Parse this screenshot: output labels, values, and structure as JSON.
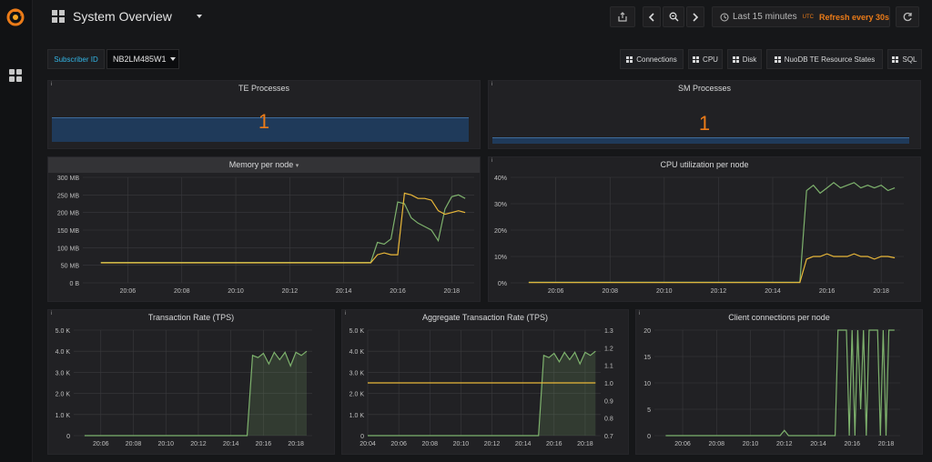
{
  "topbar": {
    "title": "System Overview",
    "time_range": "Last 15 minutes",
    "timezone": "UTC",
    "refresh": "Refresh every 30s"
  },
  "variables": {
    "label": "Subscriber ID",
    "value": "NB2LM485W1"
  },
  "dashboard_links": [
    "Connections",
    "CPU",
    "Disk",
    "NuoDB TE Resource States",
    "SQL"
  ],
  "stats": [
    {
      "title": "TE Processes",
      "value": "1"
    },
    {
      "title": "SM Processes",
      "value": "1"
    }
  ],
  "panels": {
    "memory": {
      "title": "Memory per node"
    },
    "cpu": {
      "title": "CPU utilization per node"
    },
    "tps": {
      "title": "Transaction Rate (TPS)"
    },
    "agg": {
      "title": "Aggregate Transaction Rate (TPS)"
    },
    "clients": {
      "title": "Client connections per node"
    }
  },
  "colors": {
    "green": "#7eb26d",
    "yellow": "#eab839",
    "orange": "#eb7b18",
    "blue": "#33b5e5"
  },
  "chart_data": [
    {
      "id": "memory",
      "type": "line",
      "title": "Memory per node",
      "x": [
        "20:05",
        "20:05:30",
        "20:06",
        "20:06:30",
        "20:07",
        "20:07:30",
        "20:08",
        "20:08:30",
        "20:09",
        "20:09:30",
        "20:10",
        "20:10:30",
        "20:11",
        "20:11:30",
        "20:12",
        "20:12:30",
        "20:13",
        "20:13:30",
        "20:14",
        "20:14:30",
        "20:15",
        "20:15:15",
        "20:15:30",
        "20:15:45",
        "20:16",
        "20:16:15",
        "20:16:30",
        "20:16:45",
        "20:17",
        "20:17:15",
        "20:17:30",
        "20:17:45",
        "20:18",
        "20:18:15",
        "20:18:30"
      ],
      "xticks": [
        "20:06",
        "20:08",
        "20:10",
        "20:12",
        "20:14",
        "20:16",
        "20:18"
      ],
      "yticks": [
        "0 B",
        "50 MB",
        "100 MB",
        "150 MB",
        "200 MB",
        "250 MB",
        "300 MB"
      ],
      "ylim": [
        0,
        300
      ],
      "series": [
        {
          "color": "#7eb26d",
          "values": [
            58,
            58,
            58,
            58,
            58,
            58,
            58,
            58,
            58,
            58,
            58,
            58,
            58,
            58,
            58,
            58,
            58,
            58,
            58,
            58,
            58,
            115,
            110,
            125,
            230,
            225,
            185,
            170,
            160,
            150,
            120,
            210,
            245,
            250,
            240
          ]
        },
        {
          "color": "#eab839",
          "values": [
            57,
            57,
            57,
            57,
            57,
            57,
            57,
            57,
            57,
            57,
            57,
            57,
            57,
            57,
            57,
            57,
            57,
            57,
            57,
            57,
            57,
            80,
            85,
            80,
            80,
            255,
            250,
            240,
            240,
            235,
            205,
            195,
            200,
            205,
            200
          ]
        }
      ]
    },
    {
      "id": "cpu",
      "type": "line",
      "title": "CPU utilization per node",
      "x": [
        "20:05",
        "20:05:30",
        "20:06",
        "20:06:30",
        "20:07",
        "20:07:30",
        "20:08",
        "20:08:30",
        "20:09",
        "20:09:30",
        "20:10",
        "20:10:30",
        "20:11",
        "20:11:30",
        "20:12",
        "20:12:30",
        "20:13",
        "20:13:30",
        "20:14",
        "20:14:30",
        "20:15",
        "20:15:15",
        "20:15:30",
        "20:15:45",
        "20:16",
        "20:16:15",
        "20:16:30",
        "20:16:45",
        "20:17",
        "20:17:15",
        "20:17:30",
        "20:17:45",
        "20:18",
        "20:18:15",
        "20:18:30"
      ],
      "xticks": [
        "20:06",
        "20:08",
        "20:10",
        "20:12",
        "20:14",
        "20:16",
        "20:18"
      ],
      "yticks": [
        "0%",
        "10%",
        "20%",
        "30%",
        "40%"
      ],
      "ylim": [
        0,
        40
      ],
      "series": [
        {
          "color": "#7eb26d",
          "values": [
            0.2,
            0.2,
            0.2,
            0.2,
            0.2,
            0.2,
            0.2,
            0.2,
            0.2,
            0.2,
            0.2,
            0.2,
            0.2,
            0.2,
            0.2,
            0.2,
            0.2,
            0.2,
            0.2,
            0.2,
            0.2,
            35,
            37,
            34,
            36,
            38,
            36,
            37,
            38,
            36,
            37,
            36,
            37,
            35,
            36
          ]
        },
        {
          "color": "#eab839",
          "values": [
            0.1,
            0.1,
            0.1,
            0.1,
            0.1,
            0.1,
            0.1,
            0.1,
            0.1,
            0.1,
            0.1,
            0.1,
            0.1,
            0.1,
            0.1,
            0.1,
            0.1,
            0.1,
            0.1,
            0.1,
            0.1,
            9,
            10,
            10,
            11,
            10,
            10,
            10,
            11,
            10,
            10,
            9,
            10,
            10,
            9.5
          ]
        }
      ]
    },
    {
      "id": "tps",
      "type": "area",
      "title": "Transaction Rate (TPS)",
      "x": [
        "20:05",
        "20:06",
        "20:07",
        "20:08",
        "20:09",
        "20:10",
        "20:11",
        "20:12",
        "20:13",
        "20:14",
        "20:14:30",
        "20:15",
        "20:15:20",
        "20:15:40",
        "20:16",
        "20:16:20",
        "20:16:40",
        "20:17",
        "20:17:20",
        "20:17:40",
        "20:18",
        "20:18:20",
        "20:18:40"
      ],
      "xticks": [
        "20:06",
        "20:08",
        "20:10",
        "20:12",
        "20:14",
        "20:16",
        "20:18"
      ],
      "yticks": [
        "0",
        "1.0 K",
        "2.0 K",
        "3.0 K",
        "4.0 K",
        "5.0 K"
      ],
      "ylim": [
        0,
        5000
      ],
      "series": [
        {
          "color": "#7eb26d",
          "values": [
            0,
            0,
            0,
            0,
            0,
            0,
            0,
            0,
            0,
            0,
            0,
            0,
            3800,
            3700,
            3900,
            3400,
            3950,
            3600,
            3950,
            3300,
            3950,
            3800,
            4000
          ]
        }
      ]
    },
    {
      "id": "agg",
      "type": "area",
      "title": "Aggregate Transaction Rate (TPS)",
      "x": [
        "20:04",
        "20:05",
        "20:06",
        "20:07",
        "20:08",
        "20:09",
        "20:10",
        "20:11",
        "20:12",
        "20:13",
        "20:14",
        "20:15",
        "20:15:20",
        "20:15:40",
        "20:16",
        "20:16:20",
        "20:16:40",
        "20:17",
        "20:17:20",
        "20:17:40",
        "20:18",
        "20:18:20",
        "20:18:40"
      ],
      "xticks": [
        "20:04",
        "20:06",
        "20:08",
        "20:10",
        "20:12",
        "20:14",
        "20:16",
        "20:18"
      ],
      "yticks": [
        "0",
        "1.0 K",
        "2.0 K",
        "3.0 K",
        "4.0 K",
        "5.0 K"
      ],
      "y2ticks": [
        "0.7",
        "0.8",
        "0.9",
        "1.0",
        "1.1",
        "1.2",
        "1.3"
      ],
      "ylim": [
        0,
        5000
      ],
      "y2lim": [
        0.7,
        1.3
      ],
      "series": [
        {
          "color": "#7eb26d",
          "values": [
            0,
            0,
            0,
            0,
            0,
            0,
            0,
            0,
            0,
            0,
            0,
            0,
            3800,
            3700,
            3900,
            3500,
            3950,
            3600,
            3950,
            3400,
            3950,
            3800,
            4000
          ]
        },
        {
          "color": "#eab839",
          "axis": "right",
          "values": [
            1,
            1,
            1,
            1,
            1,
            1,
            1,
            1,
            1,
            1,
            1,
            1,
            1,
            1,
            1,
            1,
            1,
            1,
            1,
            1,
            1,
            1,
            1
          ]
        }
      ]
    },
    {
      "id": "clients",
      "type": "line",
      "title": "Client connections per node",
      "x": [
        "20:05",
        "20:06",
        "20:07",
        "20:08",
        "20:09",
        "20:10",
        "20:11",
        "20:11:45",
        "20:12",
        "20:12:15",
        "20:13",
        "20:14",
        "20:15",
        "20:15:10",
        "20:15:20",
        "20:15:30",
        "20:15:40",
        "20:15:50",
        "20:16",
        "20:16:10",
        "20:16:20",
        "20:16:30",
        "20:16:40",
        "20:16:50",
        "20:17",
        "20:17:10",
        "20:17:20",
        "20:17:30",
        "20:17:40",
        "20:17:50",
        "20:18",
        "20:18:10",
        "20:18:20",
        "20:18:30"
      ],
      "xticks": [
        "20:06",
        "20:08",
        "20:10",
        "20:12",
        "20:14",
        "20:16",
        "20:18"
      ],
      "yticks": [
        "0",
        "5",
        "10",
        "15",
        "20"
      ],
      "ylim": [
        0,
        20
      ],
      "series": [
        {
          "color": "#7eb26d",
          "values": [
            0,
            0,
            0,
            0,
            0,
            0,
            0,
            0,
            1,
            0,
            0,
            0,
            0,
            20,
            20,
            20,
            20,
            0,
            20,
            0,
            20,
            5,
            20,
            0,
            20,
            20,
            20,
            20,
            0,
            20,
            0,
            20,
            20,
            20
          ]
        }
      ]
    }
  ]
}
